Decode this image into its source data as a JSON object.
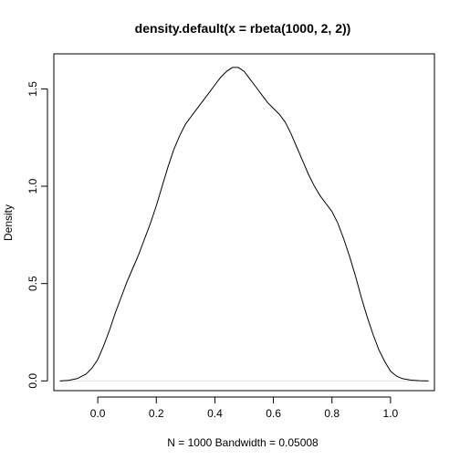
{
  "chart_data": {
    "type": "line",
    "title": "density.default(x = rbeta(1000, 2, 2))",
    "xlabel": "N = 1000   Bandwidth = 0.05008",
    "ylabel": "Density",
    "xlim": [
      -0.15,
      1.15
    ],
    "ylim": [
      -0.05,
      1.68
    ],
    "x_ticks": [
      0.0,
      0.2,
      0.4,
      0.6,
      0.8,
      1.0
    ],
    "x_tick_labels": [
      "0.0",
      "0.2",
      "0.4",
      "0.6",
      "0.8",
      "1.0"
    ],
    "y_ticks": [
      0.0,
      0.5,
      1.0,
      1.5
    ],
    "y_tick_labels": [
      "0.0",
      "0.5",
      "1.0",
      "1.5"
    ],
    "grid": false,
    "series": [
      {
        "color": "#000000",
        "x": [
          -0.13,
          -0.1,
          -0.07,
          -0.04,
          -0.02,
          0.0,
          0.02,
          0.04,
          0.06,
          0.08,
          0.1,
          0.12,
          0.14,
          0.16,
          0.18,
          0.2,
          0.22,
          0.24,
          0.26,
          0.28,
          0.3,
          0.32,
          0.34,
          0.36,
          0.38,
          0.4,
          0.42,
          0.44,
          0.46,
          0.48,
          0.5,
          0.52,
          0.54,
          0.56,
          0.58,
          0.6,
          0.62,
          0.64,
          0.66,
          0.68,
          0.7,
          0.72,
          0.74,
          0.76,
          0.78,
          0.8,
          0.82,
          0.84,
          0.86,
          0.88,
          0.9,
          0.92,
          0.94,
          0.96,
          0.98,
          1.0,
          1.02,
          1.04,
          1.07,
          1.1,
          1.13
        ],
        "y": [
          0.0,
          0.003,
          0.012,
          0.035,
          0.065,
          0.11,
          0.18,
          0.26,
          0.35,
          0.43,
          0.51,
          0.58,
          0.65,
          0.73,
          0.81,
          0.9,
          1.0,
          1.1,
          1.19,
          1.26,
          1.32,
          1.36,
          1.4,
          1.44,
          1.48,
          1.52,
          1.56,
          1.59,
          1.61,
          1.61,
          1.59,
          1.55,
          1.51,
          1.47,
          1.43,
          1.4,
          1.37,
          1.33,
          1.27,
          1.2,
          1.13,
          1.06,
          1.0,
          0.95,
          0.91,
          0.87,
          0.81,
          0.73,
          0.64,
          0.54,
          0.43,
          0.33,
          0.24,
          0.16,
          0.1,
          0.05,
          0.025,
          0.012,
          0.004,
          0.001,
          0.0
        ]
      }
    ]
  }
}
